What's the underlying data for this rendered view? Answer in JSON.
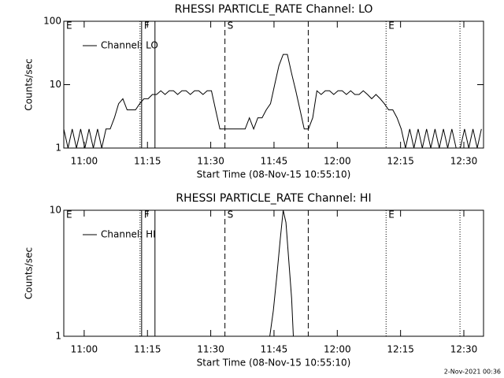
{
  "footer": "2-Nov-2021 00:36",
  "chart_data": [
    {
      "type": "line",
      "title": "RHESSI PARTICLE_RATE Channel: LO",
      "xlabel": "Start Time (08-Nov-15 10:55:10)",
      "ylabel": "Counts/sec",
      "log_y": true,
      "legend": "upper left",
      "x": [
        0,
        60,
        120,
        180,
        240,
        300,
        360,
        420,
        480,
        540,
        600,
        660,
        720,
        780,
        840,
        900,
        960,
        1020,
        1080,
        1140,
        1200,
        1260,
        1320,
        1380,
        1440,
        1500,
        1560,
        1620,
        1680,
        1740,
        1800,
        1860,
        1920,
        1980,
        2040,
        2100,
        2160,
        2220,
        2280,
        2340,
        2400,
        2460,
        2520,
        2580,
        2640,
        2700,
        2760,
        2820,
        2880,
        2940,
        3000,
        3060,
        3120,
        3180,
        3240,
        3300,
        3360,
        3420,
        3480,
        3540,
        3600,
        3660,
        3720,
        3780,
        3840,
        3900,
        3960,
        4020,
        4080,
        4140,
        4200,
        4260,
        4320,
        4380,
        4440,
        4500,
        4560,
        4620,
        4680,
        4740,
        4800,
        4860,
        4920,
        4980,
        5040,
        5100,
        5160,
        5220,
        5280,
        5340,
        5400,
        5460,
        5520,
        5580,
        5640,
        5700,
        5760,
        5820,
        5880,
        5940
      ],
      "series": [
        {
          "name": "Channel: LO",
          "color": "#000000",
          "values": [
            2,
            1,
            2,
            1,
            2,
            1,
            2,
            1,
            2,
            1,
            2,
            2,
            3,
            5,
            6,
            4,
            4,
            4,
            5,
            6,
            6,
            7,
            7,
            8,
            7,
            8,
            8,
            7,
            8,
            8,
            7,
            8,
            8,
            7,
            8,
            8,
            4,
            2,
            2,
            2,
            2,
            2,
            2,
            2,
            3,
            2,
            3,
            3,
            4,
            5,
            10,
            20,
            30,
            30,
            15,
            8,
            4,
            2,
            2,
            3,
            8,
            7,
            8,
            8,
            7,
            8,
            8,
            7,
            8,
            7,
            7,
            8,
            7,
            6,
            7,
            6,
            5,
            4,
            4,
            3,
            2,
            1,
            2,
            1,
            2,
            1,
            2,
            1,
            2,
            1,
            2,
            1,
            2,
            1,
            1,
            2,
            1,
            2,
            1,
            2
          ]
        }
      ],
      "xlim": [
        0,
        5970
      ],
      "xticks": [
        {
          "value": 290,
          "label": "11:00"
        },
        {
          "value": 1190,
          "label": "11:15"
        },
        {
          "value": 2090,
          "label": "11:30"
        },
        {
          "value": 2990,
          "label": "11:45"
        },
        {
          "value": 3890,
          "label": "12:00"
        },
        {
          "value": 4790,
          "label": "12:15"
        },
        {
          "value": 5690,
          "label": "12:30"
        }
      ],
      "ylim": [
        1,
        100
      ],
      "yticks": [
        1,
        10,
        100
      ],
      "flags": [
        {
          "label": "E",
          "x": 0
        },
        {
          "label": "F",
          "x": 1107
        },
        {
          "label": "S",
          "x": 2292
        },
        {
          "label": "E",
          "x": 4584
        }
      ],
      "lines": [
        {
          "x": 1085,
          "style": "dotted"
        },
        {
          "x": 1107,
          "style": "solid"
        },
        {
          "x": 1297,
          "style": "solid"
        },
        {
          "x": 2292,
          "style": "dashed"
        },
        {
          "x": 3477,
          "style": "dashed"
        },
        {
          "x": 4584,
          "style": "dotted"
        },
        {
          "x": 5635,
          "style": "dotted"
        }
      ]
    },
    {
      "type": "line",
      "title": "RHESSI PARTICLE_RATE Channel: HI",
      "xlabel": "Start Time (08-Nov-15 10:55:10)",
      "ylabel": "Counts/sec",
      "log_y": true,
      "legend": "upper left",
      "x": [
        2930,
        2980,
        3030,
        3080,
        3120,
        3160,
        3200,
        3240,
        3265
      ],
      "series": [
        {
          "name": "Channel: HI",
          "color": "#000000",
          "values": [
            1,
            1.6,
            3,
            6,
            10,
            8,
            4,
            2,
            1
          ]
        }
      ],
      "xlim": [
        0,
        5970
      ],
      "xticks": [
        {
          "value": 290,
          "label": "11:00"
        },
        {
          "value": 1190,
          "label": "11:15"
        },
        {
          "value": 2090,
          "label": "11:30"
        },
        {
          "value": 2990,
          "label": "11:45"
        },
        {
          "value": 3890,
          "label": "12:00"
        },
        {
          "value": 4790,
          "label": "12:15"
        },
        {
          "value": 5690,
          "label": "12:30"
        }
      ],
      "ylim": [
        1,
        10
      ],
      "yticks": [
        1,
        10
      ],
      "flags": [
        {
          "label": "E",
          "x": 0
        },
        {
          "label": "F",
          "x": 1107
        },
        {
          "label": "S",
          "x": 2292
        },
        {
          "label": "E",
          "x": 4584
        }
      ],
      "lines": [
        {
          "x": 1085,
          "style": "dotted"
        },
        {
          "x": 1107,
          "style": "solid"
        },
        {
          "x": 1297,
          "style": "solid"
        },
        {
          "x": 2292,
          "style": "dashed"
        },
        {
          "x": 3477,
          "style": "dashed"
        },
        {
          "x": 4584,
          "style": "dotted"
        },
        {
          "x": 5635,
          "style": "dotted"
        }
      ]
    }
  ]
}
